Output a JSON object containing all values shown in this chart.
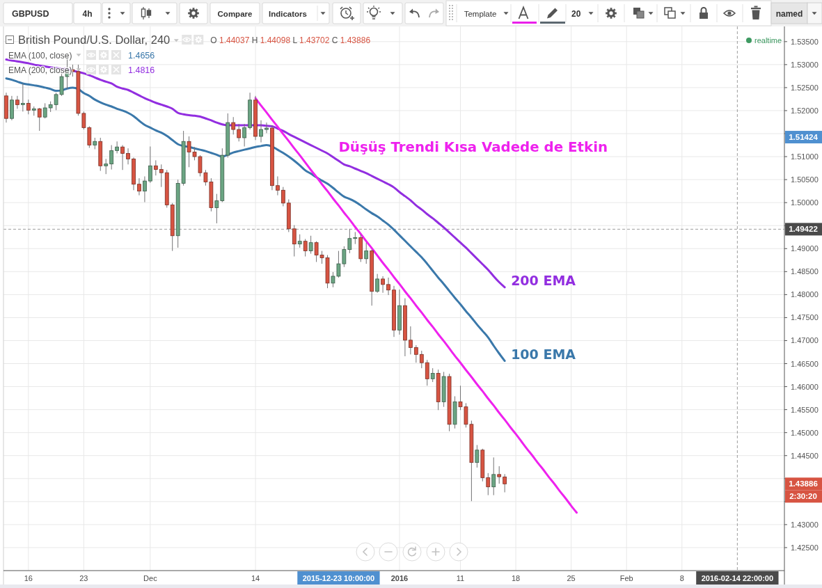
{
  "chart_data": {
    "type": "candlestick",
    "title": "British Pound/U.S. Dollar, 240",
    "categories": [
      null,
      null,
      null,
      null,
      "16",
      null,
      null,
      null,
      null,
      null,
      null,
      null,
      null,
      null,
      "23",
      null,
      null,
      null,
      null,
      null,
      null,
      null,
      null,
      null,
      null,
      null,
      "Dec",
      null,
      null,
      null,
      null,
      null,
      null,
      null,
      null,
      null,
      null,
      null,
      null,
      null,
      null,
      null,
      null,
      null,
      null,
      "14",
      null,
      null,
      null,
      null,
      null,
      null,
      null,
      null,
      null,
      null,
      null,
      null,
      null,
      null,
      "2015-12-23 10:00:00",
      null,
      null,
      null,
      null,
      null,
      null,
      null,
      null,
      null,
      null,
      "2016",
      null,
      null,
      null,
      null,
      null,
      null,
      null,
      null,
      null,
      null,
      "11",
      null,
      null,
      null,
      null,
      null,
      null,
      null,
      null,
      null,
      "18",
      null,
      null,
      null,
      null,
      null,
      null,
      null,
      null,
      null,
      "25",
      null,
      null,
      null,
      null,
      null,
      null,
      null,
      null,
      null,
      "Feb",
      null,
      null,
      null,
      null,
      null,
      null,
      null,
      null,
      null,
      "8",
      null,
      null,
      null,
      null,
      null,
      null,
      null,
      null,
      null,
      "2016-02-14 22:00:00",
      null,
      null,
      null,
      null,
      null,
      null,
      null,
      null
    ],
    "ohlc": [
      [
        1.5232,
        1.5239,
        1.5174,
        1.5183
      ],
      [
        1.5183,
        1.5232,
        1.5179,
        1.5223
      ],
      [
        1.5223,
        1.5232,
        1.5204,
        1.5213
      ],
      [
        1.5213,
        1.5259,
        1.5198,
        1.5216
      ],
      [
        1.5216,
        1.5224,
        1.5192,
        1.5201
      ],
      [
        1.5201,
        1.5209,
        1.5189,
        1.5204
      ],
      [
        1.5204,
        1.5206,
        1.5156,
        1.5186
      ],
      [
        1.5186,
        1.5216,
        1.5183,
        1.5206
      ],
      [
        1.5206,
        1.522,
        1.5197,
        1.5213
      ],
      [
        1.5213,
        1.5239,
        1.5201,
        1.5235
      ],
      [
        1.5235,
        1.5292,
        1.5232,
        1.5274
      ],
      [
        1.5274,
        1.5318,
        1.5247,
        1.5289
      ],
      [
        1.5289,
        1.53,
        1.5274,
        1.5285
      ],
      [
        1.5285,
        1.53,
        1.5189,
        1.5194
      ],
      [
        1.5194,
        1.5198,
        1.5159,
        1.5163
      ],
      [
        1.5163,
        1.5166,
        1.5119,
        1.5125
      ],
      [
        1.5125,
        1.5141,
        1.5116,
        1.5133
      ],
      [
        1.5133,
        1.5141,
        1.5069,
        1.508
      ],
      [
        1.508,
        1.5095,
        1.5062,
        1.5084
      ],
      [
        1.5084,
        1.5125,
        1.5072,
        1.5113
      ],
      [
        1.5113,
        1.5133,
        1.5107,
        1.5121
      ],
      [
        1.5121,
        1.5125,
        1.5071,
        1.5107
      ],
      [
        1.5107,
        1.5118,
        1.5083,
        1.5095
      ],
      [
        1.5095,
        1.5098,
        1.5027,
        1.504
      ],
      [
        1.504,
        1.5053,
        1.5016,
        1.5025
      ],
      [
        1.5025,
        1.5057,
        1.5001,
        1.5047
      ],
      [
        1.5047,
        1.5122,
        1.5043,
        1.508
      ],
      [
        1.508,
        1.5092,
        1.5059,
        1.5072
      ],
      [
        1.5072,
        1.5083,
        1.5034,
        1.5065
      ],
      [
        1.5065,
        1.5071,
        1.4989,
        1.4995
      ],
      [
        1.4995,
        1.4999,
        1.4895,
        1.4928
      ],
      [
        1.4928,
        1.505,
        1.4902,
        1.5042
      ],
      [
        1.5042,
        1.5156,
        1.5037,
        1.5133
      ],
      [
        1.5133,
        1.5144,
        1.5077,
        1.511
      ],
      [
        1.511,
        1.5121,
        1.5092,
        1.51
      ],
      [
        1.51,
        1.5103,
        1.5057,
        1.5065
      ],
      [
        1.5065,
        1.5071,
        1.5037,
        1.5045
      ],
      [
        1.5045,
        1.5053,
        1.4981,
        1.4989
      ],
      [
        1.4989,
        1.5019,
        1.4955,
        1.5004
      ],
      [
        1.5004,
        1.5118,
        1.5001,
        1.5103
      ],
      [
        1.5103,
        1.5194,
        1.5098,
        1.5174
      ],
      [
        1.5174,
        1.5186,
        1.5148,
        1.5159
      ],
      [
        1.5159,
        1.5171,
        1.5133,
        1.5141
      ],
      [
        1.5141,
        1.5171,
        1.5122,
        1.5163
      ],
      [
        1.5163,
        1.5239,
        1.5159,
        1.5223
      ],
      [
        1.5223,
        1.5232,
        1.5136,
        1.5144
      ],
      [
        1.5144,
        1.5179,
        1.5131,
        1.5159
      ],
      [
        1.5159,
        1.5174,
        1.5151,
        1.5162
      ],
      [
        1.5162,
        1.5168,
        1.5027,
        1.5037
      ],
      [
        1.5037,
        1.5057,
        1.5016,
        1.5027
      ],
      [
        1.5027,
        1.5034,
        1.4992,
        1.4999
      ],
      [
        1.4999,
        1.5007,
        1.4936,
        1.4943
      ],
      [
        1.4943,
        1.4951,
        1.4883,
        1.491
      ],
      [
        1.491,
        1.4931,
        1.4902,
        1.4916
      ],
      [
        1.4916,
        1.4921,
        1.4883,
        1.4895
      ],
      [
        1.4895,
        1.4928,
        1.4889,
        1.4913
      ],
      [
        1.4913,
        1.4916,
        1.4871,
        1.4886
      ],
      [
        1.4886,
        1.4895,
        1.4867,
        1.488
      ],
      [
        1.488,
        1.4886,
        1.4814,
        1.4825
      ],
      [
        1.4825,
        1.4849,
        1.4816,
        1.484
      ],
      [
        1.484,
        1.4895,
        1.4837,
        1.4867
      ],
      [
        1.4867,
        1.4905,
        1.486,
        1.4898
      ],
      [
        1.4898,
        1.4943,
        1.489,
        1.4922
      ],
      [
        1.4922,
        1.4936,
        1.491,
        1.4924
      ],
      [
        1.4924,
        1.4931,
        1.4871,
        1.4878
      ],
      [
        1.4878,
        1.4913,
        1.4867,
        1.4895
      ],
      [
        1.4895,
        1.4898,
        1.4776,
        1.4807
      ],
      [
        1.4807,
        1.4845,
        1.4804,
        1.4834
      ],
      [
        1.4834,
        1.484,
        1.4804,
        1.4822
      ],
      [
        1.4822,
        1.4837,
        1.4799,
        1.481
      ],
      [
        1.481,
        1.4819,
        1.4708,
        1.4723
      ],
      [
        1.4723,
        1.4811,
        1.4713,
        1.4776
      ],
      [
        1.4776,
        1.4792,
        1.4666,
        1.4701
      ],
      [
        1.4701,
        1.4731,
        1.467,
        1.4685
      ],
      [
        1.4685,
        1.469,
        1.4652,
        1.467
      ],
      [
        1.467,
        1.4678,
        1.464,
        1.4652
      ],
      [
        1.4652,
        1.4658,
        1.4602,
        1.4617
      ],
      [
        1.4617,
        1.464,
        1.461,
        1.4629
      ],
      [
        1.4629,
        1.4637,
        1.4549,
        1.4567
      ],
      [
        1.4567,
        1.4632,
        1.4556,
        1.4622
      ],
      [
        1.4622,
        1.4628,
        1.4503,
        1.4518
      ],
      [
        1.4518,
        1.4579,
        1.4509,
        1.4567
      ],
      [
        1.4567,
        1.4602,
        1.4549,
        1.4556
      ],
      [
        1.4556,
        1.4564,
        1.4511,
        1.4518
      ],
      [
        1.4518,
        1.4526,
        1.4351,
        1.4435
      ],
      [
        1.4435,
        1.4473,
        1.4424,
        1.4462
      ],
      [
        1.4462,
        1.4465,
        1.4394,
        1.4402
      ],
      [
        1.4402,
        1.4412,
        1.4364,
        1.4382
      ],
      [
        1.4382,
        1.4446,
        1.4364,
        1.4409
      ],
      [
        1.4409,
        1.4427,
        1.4389,
        1.4404
      ],
      [
        1.44037,
        1.44098,
        1.43702,
        1.43886
      ],
      null,
      null,
      null,
      null,
      null,
      null,
      null,
      null,
      null,
      null,
      null,
      null,
      null,
      null,
      null,
      null,
      null,
      null,
      null,
      null,
      null,
      null,
      null,
      null,
      null,
      null,
      null,
      null,
      null,
      null,
      null,
      null,
      null,
      null,
      null,
      null,
      null,
      null,
      null,
      null,
      null,
      null,
      null,
      null,
      null,
      null,
      null,
      null,
      null,
      null
    ],
    "colors": [
      "#d75442",
      "#6ba583",
      "#d75442",
      "#6ba583",
      "#d75442",
      "#6ba583",
      "#d75442",
      "#6ba583",
      "#6ba583",
      "#6ba583",
      "#6ba583",
      "#6ba583",
      "#d75442",
      "#d75442",
      "#d75442",
      "#d75442",
      "#6ba583",
      "#d75442",
      "#6ba583",
      "#6ba583",
      "#6ba583",
      "#d75442",
      "#d75442",
      "#d75442",
      "#d75442",
      "#6ba583",
      "#6ba583",
      "#d75442",
      "#d75442",
      "#d75442",
      "#d75442",
      "#6ba583",
      "#6ba583",
      "#d75442",
      "#d75442",
      "#d75442",
      "#d75442",
      "#d75442",
      "#6ba583",
      "#6ba583",
      "#6ba583",
      "#d75442",
      "#d75442",
      "#6ba583",
      "#6ba583",
      "#d75442",
      "#6ba583",
      "#6ba583",
      "#d75442",
      "#d75442",
      "#d75442",
      "#d75442",
      "#d75442",
      "#6ba583",
      "#d75442",
      "#6ba583",
      "#d75442",
      "#d75442",
      "#d75442",
      "#6ba583",
      "#6ba583",
      "#6ba583",
      "#6ba583",
      "#6ba583",
      "#d75442",
      "#6ba583",
      "#d75442",
      "#6ba583",
      "#d75442",
      "#d75442",
      "#d75442",
      "#6ba583",
      "#d75442",
      "#d75442",
      "#d75442",
      "#d75442",
      "#d75442",
      "#6ba583",
      "#d75442",
      "#6ba583",
      "#d75442",
      "#6ba583",
      "#d75442",
      "#d75442",
      "#d75442",
      "#6ba583",
      "#d75442",
      "#d75442",
      "#6ba583",
      "#d75442",
      "#d75442",
      null,
      null,
      null,
      null,
      null,
      null,
      null,
      null,
      null,
      null,
      null,
      null,
      null,
      null,
      null,
      null,
      null,
      null,
      null,
      null,
      null,
      null,
      null,
      null,
      null,
      null,
      null,
      null,
      null,
      null,
      null,
      null,
      null,
      null,
      null,
      null,
      null,
      null,
      null,
      null,
      null,
      null,
      null,
      null,
      null,
      null,
      null,
      null,
      null,
      null
    ],
    "series": [
      {
        "name": "100 EMA",
        "type": "line",
        "color": "#3a78aa",
        "values": [
          1.527,
          1.5267,
          1.5263,
          1.5259,
          1.5257,
          1.5255,
          1.5253,
          1.525,
          1.5247,
          1.5243,
          1.5244,
          1.5248,
          1.525,
          1.5247,
          1.5238,
          1.5232,
          1.5224,
          1.5218,
          1.5213,
          1.5209,
          1.5204,
          1.52,
          1.5195,
          1.5188,
          1.5178,
          1.5169,
          1.5163,
          1.5157,
          1.5152,
          1.5145,
          1.5136,
          1.5127,
          1.5123,
          1.5121,
          1.5118,
          1.5115,
          1.5112,
          1.5108,
          1.5104,
          1.51,
          1.5104,
          1.5109,
          1.5112,
          1.5115,
          1.5118,
          1.5121,
          1.5123,
          1.5125,
          1.5122,
          1.5115,
          1.5108,
          1.51,
          1.5091,
          1.5081,
          1.507,
          1.5063,
          1.5055,
          1.5048,
          1.5041,
          1.5032,
          1.5022,
          1.5013,
          1.5008,
          1.5002,
          1.4994,
          1.4985,
          1.4977,
          1.497,
          1.4961,
          1.4952,
          1.4941,
          1.4929,
          1.4917,
          1.4905,
          1.4893,
          1.4881,
          1.4867,
          1.4852,
          1.4837,
          1.4823,
          1.4808,
          1.4793,
          1.4779,
          1.4764,
          1.475,
          1.4735,
          1.4721,
          1.4707,
          1.4689,
          1.4672,
          1.4656,
          null,
          null,
          null,
          null,
          null,
          null,
          null,
          null,
          null,
          null,
          null,
          null,
          null,
          null,
          null,
          null,
          null,
          null,
          null,
          null,
          null,
          null,
          null,
          null,
          null,
          null,
          null,
          null,
          null,
          null,
          null,
          null,
          null,
          null,
          null,
          null,
          null,
          null,
          null,
          null,
          null,
          null,
          null,
          null,
          null,
          null,
          null,
          null,
          null,
          null
        ]
      },
      {
        "name": "200 EMA",
        "type": "line",
        "color": "#922ee0",
        "values": [
          1.5311,
          1.5309,
          1.5307,
          1.5305,
          1.5303,
          1.53,
          1.5298,
          1.5296,
          1.5294,
          1.5293,
          1.5291,
          1.529,
          1.5287,
          1.5284,
          1.5281,
          1.5277,
          1.5272,
          1.5267,
          1.5263,
          1.5259,
          1.5252,
          1.5248,
          1.5245,
          1.5239,
          1.5233,
          1.5227,
          1.5222,
          1.5217,
          1.5213,
          1.5209,
          1.5204,
          1.5195,
          1.5192,
          1.519,
          1.5189,
          1.5187,
          1.5183,
          1.5179,
          1.5174,
          1.517,
          1.5168,
          1.5168,
          1.5168,
          1.5168,
          1.5168,
          1.5168,
          1.5168,
          1.5167,
          1.5166,
          1.5161,
          1.5156,
          1.5149,
          1.5143,
          1.5137,
          1.5131,
          1.5125,
          1.5119,
          1.5113,
          1.5107,
          1.5099,
          1.5091,
          1.5083,
          1.5079,
          1.5074,
          1.5069,
          1.5064,
          1.5058,
          1.5052,
          1.5046,
          1.504,
          1.5033,
          1.5023,
          1.5014,
          1.5005,
          1.4994,
          1.4985,
          1.4975,
          1.4966,
          1.4956,
          1.4946,
          1.4935,
          1.4924,
          1.4913,
          1.4902,
          1.489,
          1.4878,
          1.4866,
          1.4854,
          1.484,
          1.4827,
          1.4816,
          null,
          null,
          null,
          null,
          null,
          null,
          null,
          null,
          null,
          null,
          null,
          null,
          null,
          null,
          null,
          null,
          null,
          null,
          null,
          null,
          null,
          null,
          null,
          null,
          null,
          null,
          null,
          null,
          null,
          null,
          null,
          null,
          null,
          null,
          null,
          null,
          null,
          null,
          null,
          null,
          null,
          null,
          null,
          null,
          null,
          null,
          null,
          null,
          null,
          null
        ]
      },
      {
        "type": "line",
        "color": "#ee22ee",
        "values": [
          null,
          null,
          null,
          null,
          null,
          null,
          null,
          null,
          null,
          null,
          null,
          null,
          null,
          null,
          null,
          null,
          null,
          null,
          null,
          null,
          null,
          null,
          null,
          null,
          null,
          null,
          null,
          null,
          null,
          null,
          null,
          null,
          null,
          null,
          null,
          null,
          null,
          null,
          null,
          null,
          null,
          null,
          null,
          null,
          null,
          1.5227,
          1.5211,
          1.5196,
          1.518,
          1.5165,
          1.5149,
          1.5134,
          1.5118,
          1.5103,
          1.5087,
          1.5071,
          1.5056,
          1.504,
          1.5025,
          1.5009,
          1.4994,
          1.4978,
          1.4963,
          1.4947,
          1.4932,
          1.4916,
          1.4901,
          1.4885,
          1.4869,
          1.4854,
          1.4838,
          1.4823,
          1.4807,
          1.4792,
          1.4776,
          1.4761,
          1.4745,
          1.473,
          1.4714,
          1.4699,
          1.4683,
          1.4667,
          1.4652,
          1.4636,
          1.4621,
          1.4605,
          1.459,
          1.4574,
          1.4559,
          1.4543,
          1.4528,
          1.4512,
          1.4497,
          1.4481,
          1.4465,
          1.445,
          1.4434,
          1.4419,
          1.4403,
          1.4388,
          1.4372,
          1.4357,
          1.4341,
          1.4326,
          null,
          null,
          null,
          null,
          null,
          null,
          null,
          null,
          null,
          null,
          null,
          null,
          null,
          null,
          null,
          null,
          null,
          null,
          null,
          null,
          null,
          null,
          null,
          null,
          null,
          null,
          null,
          null,
          null,
          null,
          null,
          null,
          null,
          null,
          null,
          null,
          null
        ]
      }
    ],
    "ylim": [
      1.42,
      1.5383
    ],
    "yticks": [
      {
        "value": 1.425,
        "label": "1.42500"
      },
      {
        "value": 1.43,
        "label": "1.43000"
      },
      {
        "value": 1.435,
        "label": null
      },
      {
        "value": 1.44,
        "label": null
      },
      {
        "value": 1.445,
        "label": "1.44500"
      },
      {
        "value": 1.45,
        "label": "1.45000"
      },
      {
        "value": 1.455,
        "label": "1.45500"
      },
      {
        "value": 1.46,
        "label": "1.46000"
      },
      {
        "value": 1.465,
        "label": "1.46500"
      },
      {
        "value": 1.47,
        "label": "1.47000"
      },
      {
        "value": 1.475,
        "label": "1.47500"
      },
      {
        "value": 1.48,
        "label": "1.48000"
      },
      {
        "value": 1.485,
        "label": "1.48500"
      },
      {
        "value": 1.49,
        "label": "1.49000"
      },
      {
        "value": 1.495,
        "label": null
      },
      {
        "value": 1.5,
        "label": "1.50000"
      },
      {
        "value": 1.505,
        "label": "1.50500"
      },
      {
        "value": 1.51,
        "label": "1.51000"
      },
      {
        "value": 1.515,
        "label": null
      },
      {
        "value": 1.52,
        "label": "1.52000"
      },
      {
        "value": 1.525,
        "label": "1.52500"
      },
      {
        "value": 1.53,
        "label": "1.53000"
      },
      {
        "value": 1.535,
        "label": "1.53500"
      }
    ],
    "grid": true,
    "ref_lines": [
      {
        "axis": "y",
        "value": 1.49422,
        "label": "1.49422",
        "color": "#4a4a4a",
        "line_style": "dashed"
      },
      {
        "axis": "x",
        "value": "2016-02-14 22:00:00",
        "color": "#4a4a4a",
        "line_style": "dashed"
      }
    ],
    "annotations": [
      "Düşüş Trendi Kısa Vadede de Etkin",
      "1.51424",
      "O 1.44037 H 1.44098 L 1.43702 C 1.43886",
      "EMA (100, close) 1.4656",
      "EMA (200, close) 1.4816",
      "realtime",
      "1.43886",
      "2:30:20",
      "GBPUSD",
      "4h",
      "Compare",
      "Indicators",
      "Template",
      "20",
      "named"
    ]
  }
}
